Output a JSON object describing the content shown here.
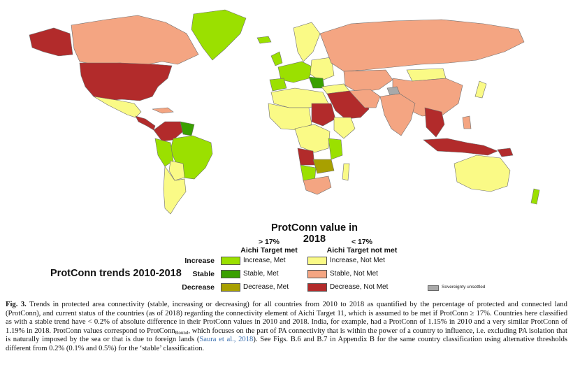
{
  "legend": {
    "title": "ProtConn value in 2018",
    "col_met": {
      "line1": "> 17%",
      "line2": "Aichi Target met"
    },
    "col_not_met": {
      "line1": "< 17%",
      "line2": "Aichi Target not met"
    },
    "rows": [
      {
        "trend": "Increase",
        "met_label": "Increase, Met",
        "not_met_label": "Increase, Not Met"
      },
      {
        "trend": "Stable",
        "met_label": "Stable, Met",
        "not_met_label": "Stable, Not Met"
      },
      {
        "trend": "Decrease",
        "met_label": "Decrease, Met",
        "not_met_label": "Decrease, Not Met"
      }
    ],
    "trends_title": "ProtConn trends 2010-2018",
    "sovereignty_label": "Sovereignty unsettled"
  },
  "colors": {
    "increase_met": "#9be000",
    "stable_met": "#3aa000",
    "decrease_met": "#a8a000",
    "increase_not_met": "#fafa86",
    "stable_not_met": "#f4a582",
    "decrease_not_met": "#b22b2b",
    "sovereignty_unsettled": "#a9a9a9"
  },
  "caption": {
    "fig": "Fig. 3.",
    "part1": " Trends in protected area connectivity (stable, increasing or decreasing) for all countries from 2010 to 2018 as quantified by the percentage of protected and connected land (ProtConn), and current status of the countries (as of 2018) regarding the connectivity element of Aichi Target 11, which is assumed to be met if ProtConn ≥ 17%. Countries here classified as with a stable trend have < 0.2% of absolute difference in their ProtConn values in 2010 and 2018. India, for example, had a ProtConn of 1.15% in 2010 and a very similar ProtConn of 1.19% in 2018. ProtConn values correspond to ProtConn",
    "sub": "Bound",
    "part2": ", which focuses on the part of PA connectivity that is within the power of a country to influence, i.e. excluding PA isolation that is naturally imposed by the sea or that is due to foreign lands (",
    "link": "Saura et al., 2018",
    "part3": "). See Figs. B.6 and B.7 in Appendix B for the same country classification using alternative thresholds different from 0.2% (0.1% and 0.5%) for the ‘stable’ classification."
  }
}
